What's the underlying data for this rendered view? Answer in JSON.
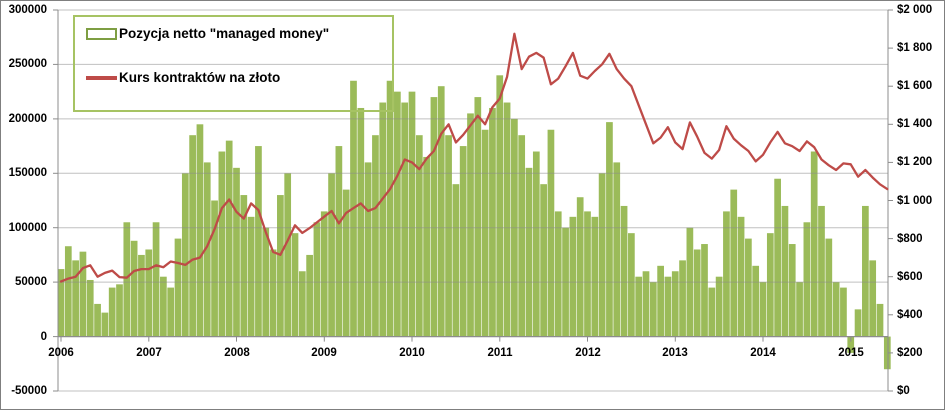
{
  "legend": {
    "items": [
      {
        "label": "Pozycja netto \"managed money\"",
        "swatch": "green-outlined-box"
      },
      {
        "label": "Kurs kontraktów na złoto",
        "swatch": "red-line"
      }
    ]
  },
  "chart_data": {
    "type": "combo (bar + line, dual axis)",
    "x_start_year": 2006,
    "x_step_years": 0.0833333,
    "x_axis": {
      "tick_labels": [
        "2006",
        "2007",
        "2008",
        "2009",
        "2010",
        "2011",
        "2012",
        "2013",
        "2014",
        "2015"
      ],
      "tick_years": [
        2006,
        2007,
        2008,
        2009,
        2010,
        2011,
        2012,
        2013,
        2014,
        2015
      ]
    },
    "left_axis": {
      "min": -50000,
      "max": 300000,
      "tick_step": 50000,
      "tick_labels": [
        "300000",
        "250000",
        "200000",
        "150000",
        "100000",
        "50000",
        "0",
        "-50000"
      ]
    },
    "right_axis": {
      "min": 0,
      "max": 2000,
      "tick_step": 200,
      "tick_labels": [
        "$2 000",
        "$1 800",
        "$1 600",
        "$1 400",
        "$1 200",
        "$1 000",
        "$800",
        "$600",
        "$400",
        "$200",
        "$0"
      ]
    },
    "grid": "horizontal gridlines at left-axis ticks, drawn over bars",
    "series": [
      {
        "name": "Pozycja netto \"managed money\"",
        "type": "bar",
        "axis": "left",
        "color": "#9bbb59",
        "values": [
          62000,
          83000,
          70000,
          78000,
          52000,
          30000,
          22000,
          45000,
          48000,
          105000,
          88000,
          75000,
          80000,
          105000,
          55000,
          45000,
          90000,
          150000,
          185000,
          195000,
          160000,
          125000,
          170000,
          180000,
          155000,
          130000,
          110000,
          175000,
          100000,
          80000,
          130000,
          150000,
          95000,
          60000,
          75000,
          105000,
          115000,
          150000,
          175000,
          135000,
          235000,
          210000,
          160000,
          185000,
          215000,
          235000,
          225000,
          215000,
          225000,
          185000,
          165000,
          220000,
          230000,
          185000,
          140000,
          175000,
          205000,
          220000,
          190000,
          210000,
          240000,
          215000,
          200000,
          185000,
          155000,
          170000,
          140000,
          190000,
          115000,
          100000,
          110000,
          128000,
          115000,
          110000,
          150000,
          197000,
          160000,
          120000,
          95000,
          55000,
          60000,
          50000,
          65000,
          55000,
          60000,
          70000,
          100000,
          80000,
          85000,
          45000,
          55000,
          115000,
          135000,
          110000,
          90000,
          65000,
          50000,
          95000,
          145000,
          120000,
          85000,
          50000,
          105000,
          170000,
          120000,
          90000,
          50000,
          45000,
          -15000,
          25000,
          120000,
          70000,
          30000,
          -30000
        ]
      },
      {
        "name": "Kurs kontraktów na złoto",
        "type": "line",
        "axis": "right",
        "color": "#be4b48",
        "values": [
          575,
          590,
          600,
          645,
          660,
          600,
          620,
          632,
          598,
          595,
          630,
          640,
          640,
          660,
          650,
          680,
          672,
          662,
          690,
          700,
          760,
          850,
          960,
          1005,
          940,
          905,
          985,
          950,
          835,
          730,
          715,
          790,
          870,
          830,
          855,
          885,
          915,
          945,
          880,
          935,
          960,
          985,
          945,
          960,
          1010,
          1060,
          1130,
          1215,
          1200,
          1165,
          1220,
          1260,
          1350,
          1400,
          1305,
          1345,
          1395,
          1445,
          1400,
          1490,
          1535,
          1650,
          1875,
          1690,
          1755,
          1775,
          1750,
          1610,
          1640,
          1705,
          1775,
          1655,
          1640,
          1680,
          1715,
          1770,
          1690,
          1640,
          1600,
          1500,
          1400,
          1300,
          1330,
          1385,
          1305,
          1270,
          1410,
          1335,
          1250,
          1220,
          1265,
          1390,
          1325,
          1290,
          1260,
          1205,
          1240,
          1305,
          1360,
          1300,
          1285,
          1260,
          1310,
          1280,
          1215,
          1185,
          1160,
          1195,
          1190,
          1125,
          1160,
          1120,
          1085,
          1060
        ]
      }
    ]
  }
}
